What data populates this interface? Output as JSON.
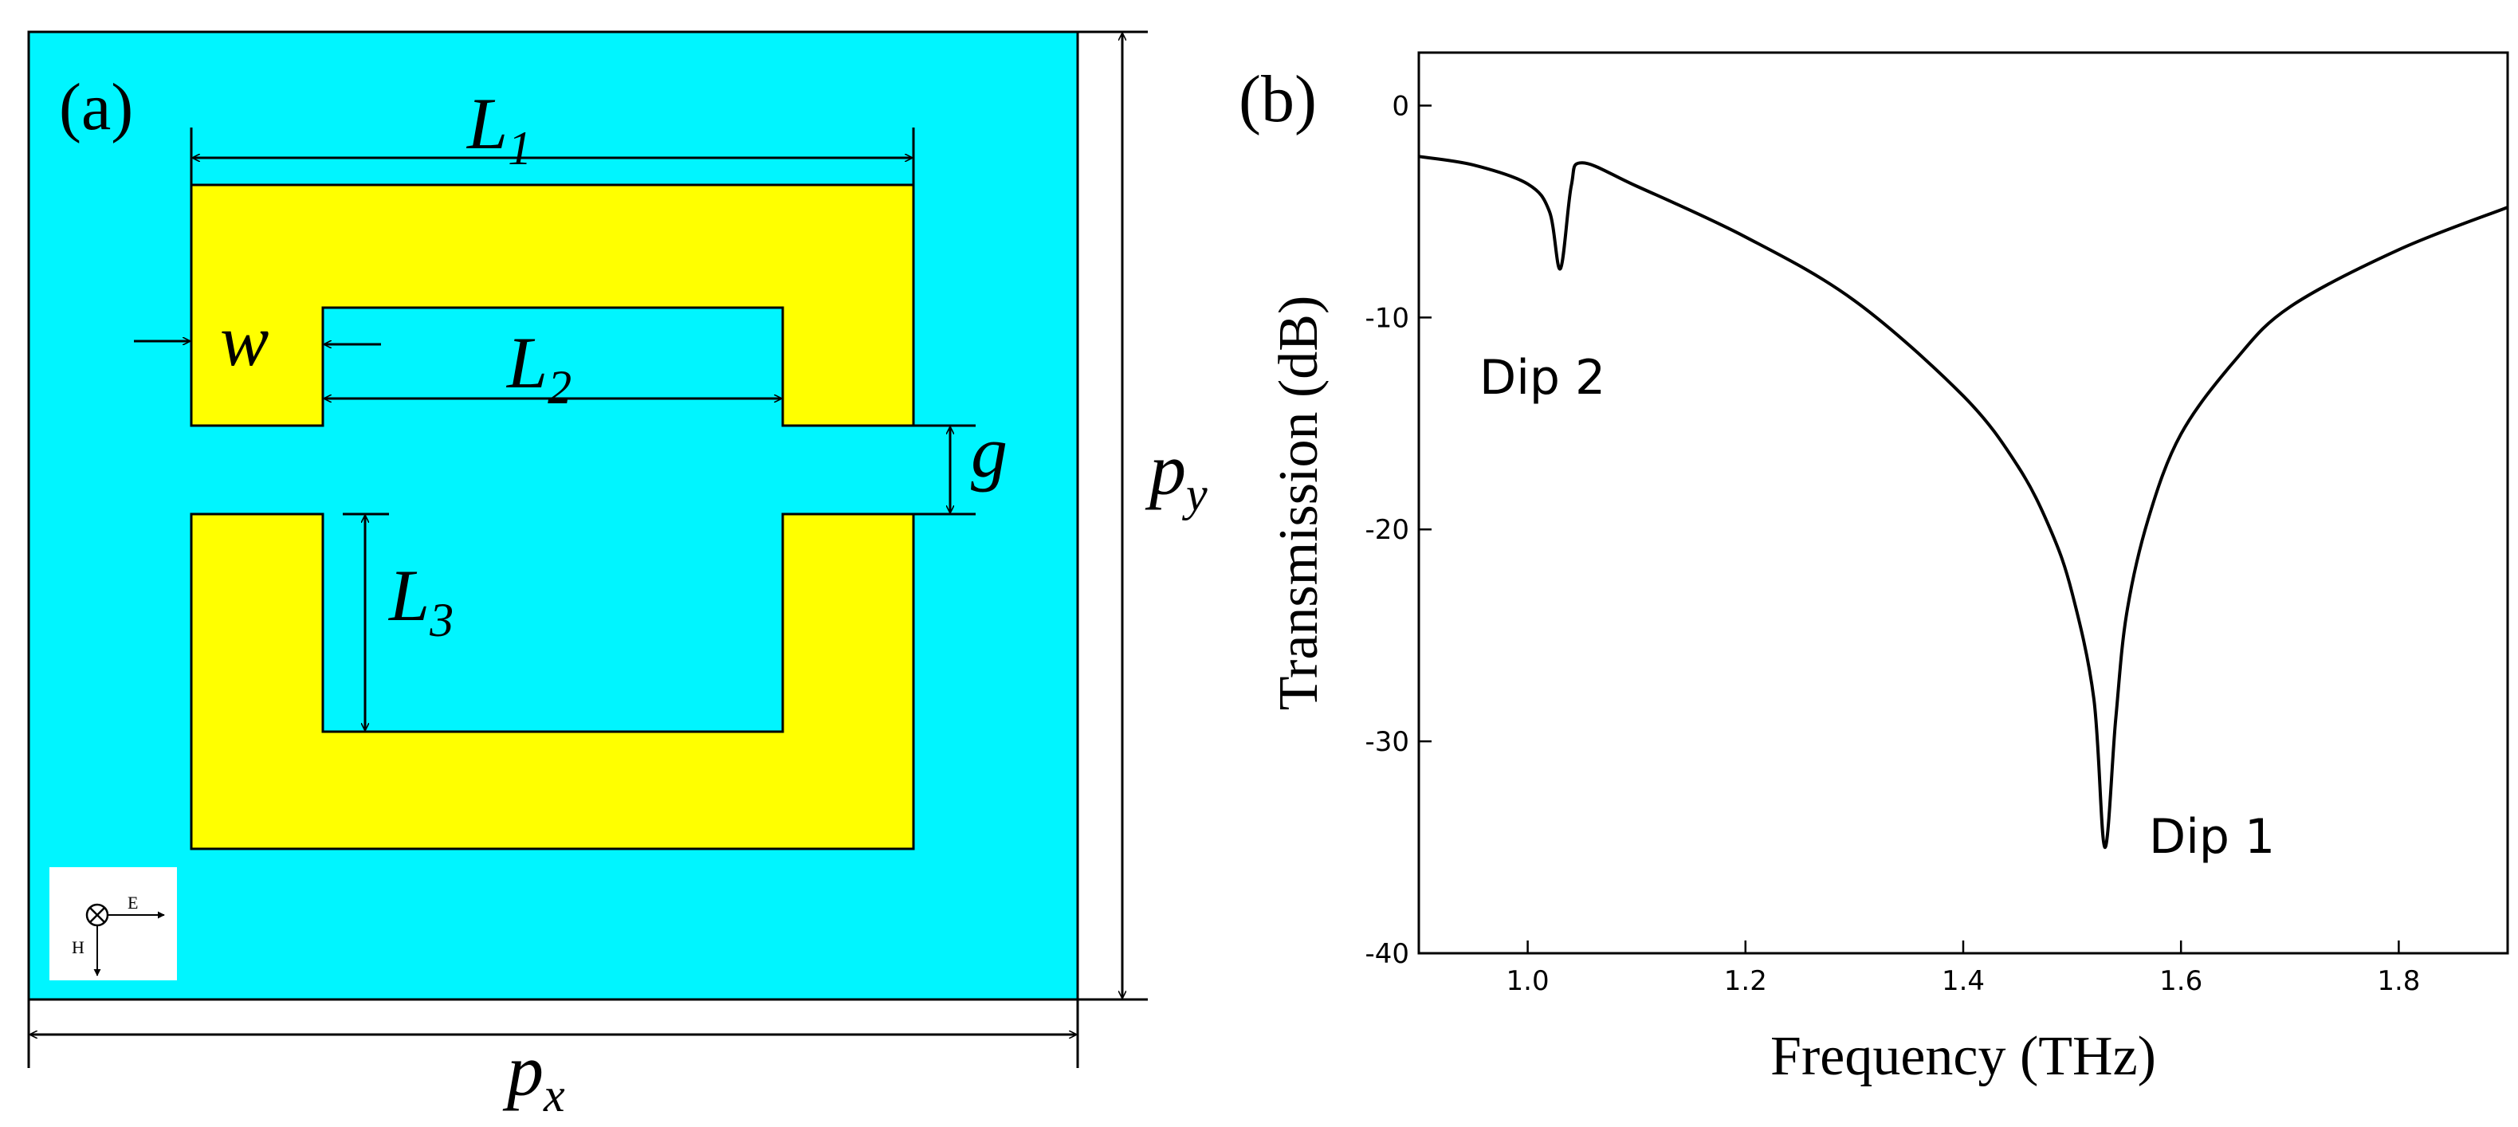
{
  "panel_a": {
    "label": "(a)",
    "colors": {
      "background": "#00f5ff",
      "resonator": "#ffff00",
      "line": "#000000"
    },
    "dims": {
      "L1": {
        "main": "L",
        "sub": "1"
      },
      "L2": {
        "main": "L",
        "sub": "2"
      },
      "L3": {
        "main": "L",
        "sub": "3"
      },
      "w": "w",
      "g": "g",
      "px": {
        "main": "p",
        "sub": "x"
      },
      "py": {
        "main": "p",
        "sub": "y"
      }
    },
    "legend": {
      "e_label": "E",
      "h_label": "H"
    }
  },
  "panel_b": {
    "label": "(b)",
    "annotations": {
      "dip1": "Dip 1",
      "dip2": "Dip 2"
    }
  },
  "chart_data": {
    "type": "line",
    "xlabel": "Frequency (THz)",
    "ylabel": "Transmission (dB)",
    "xlim": [
      0.9,
      1.9
    ],
    "ylim": [
      -40,
      2.5
    ],
    "xticks": [
      1.0,
      1.2,
      1.4,
      1.6,
      1.8
    ],
    "xtick_labels": [
      "1.0",
      "1.2",
      "1.4",
      "1.6",
      "1.8"
    ],
    "yticks": [
      0,
      -10,
      -20,
      -30,
      -40
    ],
    "ytick_labels": [
      "0",
      "-10",
      "-20",
      "-30",
      "-40"
    ],
    "series": [
      {
        "name": "Transmission",
        "x": [
          0.9,
          0.95,
          1.0,
          1.02,
          1.03,
          1.04,
          1.05,
          1.1,
          1.2,
          1.3,
          1.4,
          1.45,
          1.48,
          1.5,
          1.52,
          1.53,
          1.54,
          1.55,
          1.57,
          1.6,
          1.65,
          1.7,
          1.8,
          1.9
        ],
        "y": [
          -2.4,
          -2.8,
          -3.7,
          -5.0,
          -7.7,
          -3.8,
          -2.7,
          -3.8,
          -6.2,
          -9.2,
          -13.7,
          -17.0,
          -20.0,
          -23.0,
          -28.0,
          -35.0,
          -29.0,
          -24.0,
          -19.5,
          -15.5,
          -12.0,
          -9.5,
          -6.8,
          -4.8
        ]
      }
    ]
  }
}
